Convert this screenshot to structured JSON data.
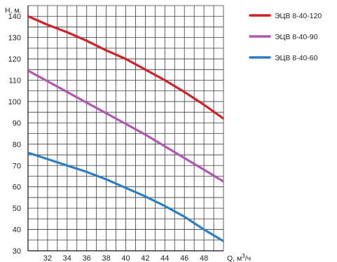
{
  "chart_data": {
    "type": "line",
    "xlabel": "Q, м³/ч",
    "ylabel": "Н, м.",
    "x_ticks": [
      32,
      34,
      36,
      38,
      40,
      42,
      44,
      46,
      48
    ],
    "y_ticks": [
      30,
      40,
      50,
      60,
      70,
      80,
      90,
      100,
      110,
      120,
      130,
      140
    ],
    "xlim": [
      30,
      50
    ],
    "ylim": [
      30,
      145
    ],
    "grid": true,
    "legend_position": "top-right",
    "series": [
      {
        "name": "ЭЦВ 8-40-120",
        "color": "#d0202a",
        "x": [
          30,
          32,
          34,
          36,
          38,
          40,
          42,
          44,
          46,
          48,
          50
        ],
        "y": [
          140,
          136,
          132.5,
          128.5,
          124,
          120,
          115,
          110,
          104.5,
          98.5,
          92
        ]
      },
      {
        "name": "ЭЦВ 8-40-90",
        "color": "#b057b0",
        "x": [
          30,
          32,
          34,
          36,
          38,
          40,
          42,
          44,
          46,
          48,
          50
        ],
        "y": [
          114.5,
          109.5,
          104.5,
          99.5,
          94.5,
          89.5,
          84.5,
          79,
          73.5,
          68,
          62.5
        ]
      },
      {
        "name": "ЭЦВ 8-40-60",
        "color": "#2d7fc1",
        "x": [
          30,
          32,
          34,
          36,
          38,
          40,
          42,
          44,
          46,
          48,
          50
        ],
        "y": [
          76,
          73,
          70,
          67,
          63.5,
          59.5,
          55.5,
          51,
          46,
          40,
          34.5
        ]
      }
    ]
  }
}
